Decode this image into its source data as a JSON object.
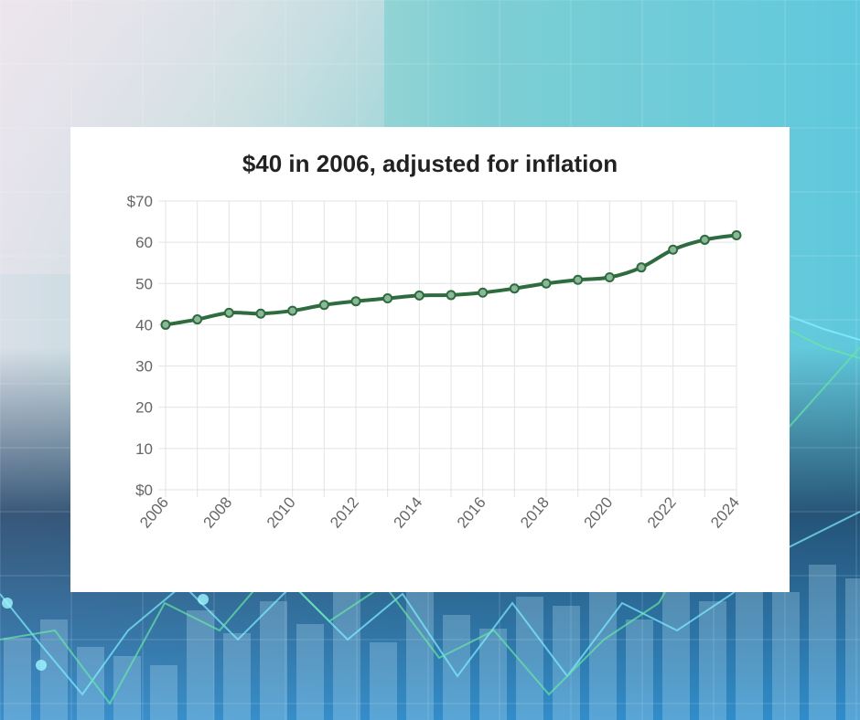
{
  "colors": {
    "line": "#2e6b3f",
    "point_fill": "#8cb89a",
    "grid": "#e3e3e3",
    "card": "#ffffff"
  },
  "chart_data": {
    "type": "line",
    "title": "$40 in 2006, adjusted for inflation",
    "xlabel": "",
    "ylabel": "",
    "x": [
      2006,
      2007,
      2008,
      2009,
      2010,
      2011,
      2012,
      2013,
      2014,
      2015,
      2016,
      2017,
      2018,
      2019,
      2020,
      2021,
      2022,
      2023,
      2024
    ],
    "x_tick_labels": [
      "2006",
      "2008",
      "2010",
      "2012",
      "2014",
      "2016",
      "2018",
      "2020",
      "2022",
      "2024"
    ],
    "y_tick_labels": [
      "$70",
      "60",
      "50",
      "40",
      "30",
      "20",
      "10",
      "$0"
    ],
    "ylim": [
      0,
      70
    ],
    "grid": true,
    "legend": "none",
    "series": [
      {
        "values": [
          40.0,
          41.3,
          42.9,
          42.7,
          43.4,
          44.8,
          45.7,
          46.4,
          47.1,
          47.2,
          47.8,
          48.8,
          50.0,
          50.9,
          51.5,
          53.9,
          58.2,
          60.6,
          61.7
        ]
      }
    ]
  }
}
